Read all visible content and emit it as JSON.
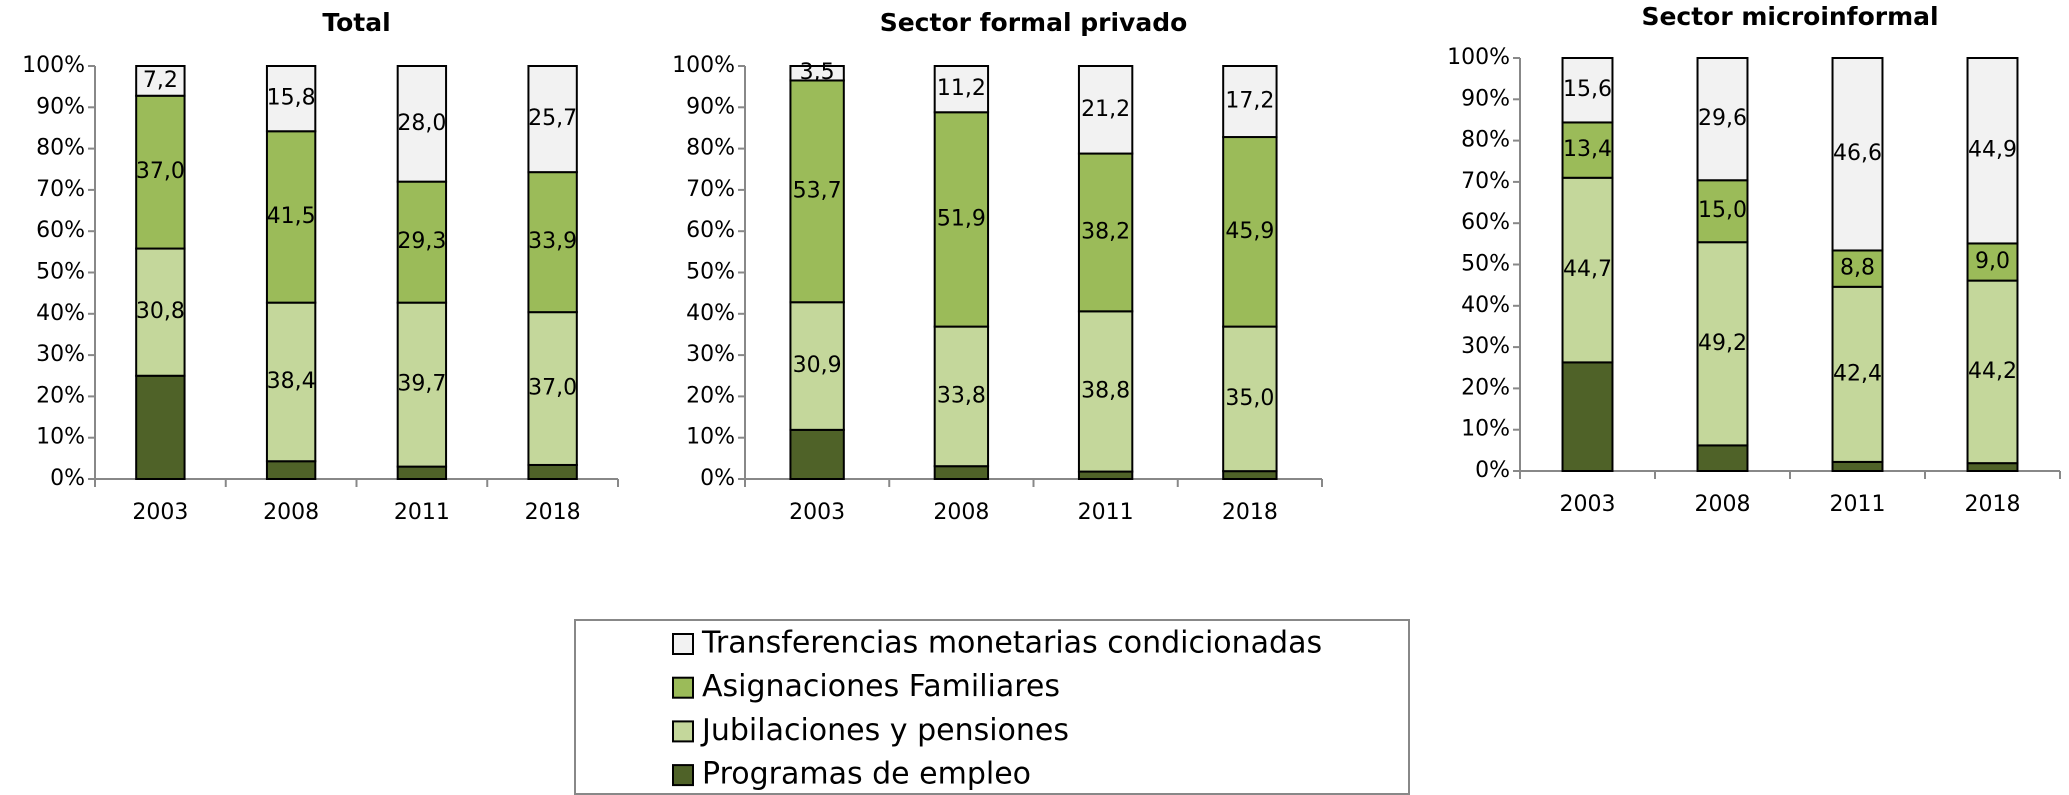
{
  "chart_data": [
    {
      "type": "stacked_bar",
      "title": "Total",
      "categories": [
        "2003",
        "2008",
        "2011",
        "2018"
      ],
      "ylim": [
        0,
        100
      ],
      "yticks": [
        {
          "value": 0,
          "label": "0%"
        },
        {
          "value": 10,
          "label": "10%"
        },
        {
          "value": 20,
          "label": "20%"
        },
        {
          "value": 30,
          "label": "30%"
        },
        {
          "value": 40,
          "label": "40%"
        },
        {
          "value": 50,
          "label": "50%"
        },
        {
          "value": 60,
          "label": "60%"
        },
        {
          "value": 70,
          "label": "70%"
        },
        {
          "value": 80,
          "label": "80%"
        },
        {
          "value": 90,
          "label": "90%"
        },
        {
          "value": 100,
          "label": "100%"
        }
      ],
      "series": [
        {
          "name": "Programas de empleo",
          "color": "#4f6228",
          "values": [
            25.0,
            4.3,
            3.0,
            3.4
          ]
        },
        {
          "name": "Jubilaciones y pensiones",
          "color": "#c4d79b",
          "values": [
            30.8,
            38.4,
            39.7,
            37.0
          ],
          "value_labels": [
            "30,8",
            "38,4",
            "39,7",
            "37,0"
          ]
        },
        {
          "name": "Asignaciones Familiares",
          "color": "#9bbb59",
          "values": [
            37.0,
            41.5,
            29.3,
            33.9
          ],
          "value_labels": [
            "37,0",
            "41,5",
            "29,3",
            "33,9"
          ]
        },
        {
          "name": "Transferencias monetarias condicionadas",
          "color": "#f2f2f2",
          "values": [
            7.2,
            15.8,
            28.0,
            25.7
          ],
          "value_labels": [
            "7,2",
            "15,8",
            "28,0",
            "25,7"
          ]
        }
      ]
    },
    {
      "type": "stacked_bar",
      "title": "Sector formal privado",
      "categories": [
        "2003",
        "2008",
        "2011",
        "2018"
      ],
      "ylim": [
        0,
        100
      ],
      "yticks": [
        {
          "value": 0,
          "label": "0%"
        },
        {
          "value": 10,
          "label": "10%"
        },
        {
          "value": 20,
          "label": "20%"
        },
        {
          "value": 30,
          "label": "30%"
        },
        {
          "value": 40,
          "label": "40%"
        },
        {
          "value": 50,
          "label": "50%"
        },
        {
          "value": 60,
          "label": "60%"
        },
        {
          "value": 70,
          "label": "70%"
        },
        {
          "value": 80,
          "label": "80%"
        },
        {
          "value": 90,
          "label": "90%"
        },
        {
          "value": 100,
          "label": "100%"
        }
      ],
      "series": [
        {
          "name": "Programas de empleo",
          "color": "#4f6228",
          "values": [
            11.9,
            3.1,
            1.8,
            1.9
          ]
        },
        {
          "name": "Jubilaciones y pensiones",
          "color": "#c4d79b",
          "values": [
            30.9,
            33.8,
            38.8,
            35.0
          ],
          "value_labels": [
            "30,9",
            "33,8",
            "38,8",
            "35,0"
          ]
        },
        {
          "name": "Asignaciones Familiares",
          "color": "#9bbb59",
          "values": [
            53.7,
            51.9,
            38.2,
            45.9
          ],
          "value_labels": [
            "53,7",
            "51,9",
            "38,2",
            "45,9"
          ]
        },
        {
          "name": "Transferencias monetarias condicionadas",
          "color": "#f2f2f2",
          "values": [
            3.5,
            11.2,
            21.2,
            17.2
          ],
          "value_labels": [
            "3,5",
            "11,2",
            "21,2",
            "17,2"
          ]
        }
      ]
    },
    {
      "type": "stacked_bar",
      "title": "Sector microinformal",
      "categories": [
        "2003",
        "2008",
        "2011",
        "2018"
      ],
      "ylim": [
        0,
        100
      ],
      "yticks": [
        {
          "value": 0,
          "label": "0%"
        },
        {
          "value": 10,
          "label": "10%"
        },
        {
          "value": 20,
          "label": "20%"
        },
        {
          "value": 30,
          "label": "30%"
        },
        {
          "value": 40,
          "label": "40%"
        },
        {
          "value": 50,
          "label": "50%"
        },
        {
          "value": 60,
          "label": "60%"
        },
        {
          "value": 70,
          "label": "70%"
        },
        {
          "value": 80,
          "label": "80%"
        },
        {
          "value": 90,
          "label": "90%"
        },
        {
          "value": 100,
          "label": "100%"
        }
      ],
      "series": [
        {
          "name": "Programas de empleo",
          "color": "#4f6228",
          "values": [
            26.3,
            6.2,
            2.2,
            1.9
          ]
        },
        {
          "name": "Jubilaciones y pensiones",
          "color": "#c4d79b",
          "values": [
            44.7,
            49.2,
            42.4,
            44.2
          ],
          "value_labels": [
            "44,7",
            "49,2",
            "42,4",
            "44,2"
          ]
        },
        {
          "name": "Asignaciones Familiares",
          "color": "#9bbb59",
          "values": [
            13.4,
            15.0,
            8.8,
            9.0
          ],
          "value_labels": [
            "13,4",
            "15,0",
            "8,8",
            "9,0"
          ]
        },
        {
          "name": "Transferencias monetarias condicionadas",
          "color": "#f2f2f2",
          "values": [
            15.6,
            29.6,
            46.6,
            44.9
          ],
          "value_labels": [
            "15,6",
            "29,6",
            "46,6",
            "44,9"
          ]
        }
      ]
    }
  ]
}
